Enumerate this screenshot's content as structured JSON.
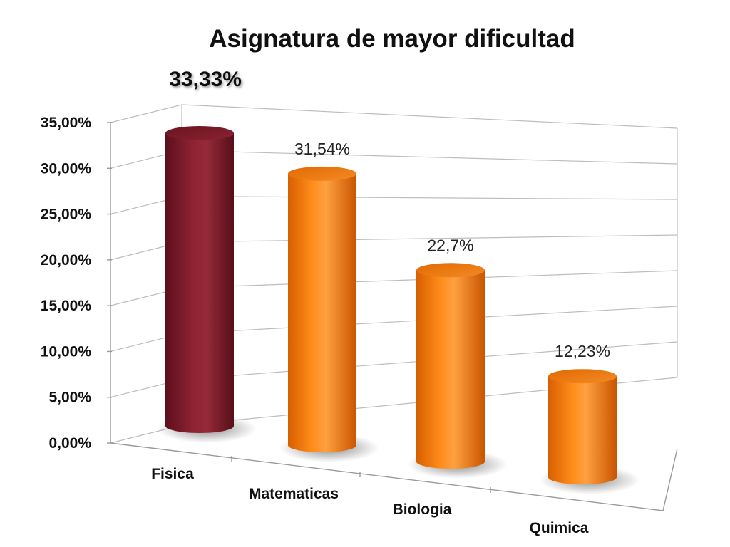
{
  "chart_data": {
    "type": "bar",
    "title": "Asignatura de mayor dificultad",
    "categories": [
      "Fisica",
      "Matematicas",
      "Biologia",
      "Quimica"
    ],
    "values": [
      33.33,
      31.54,
      22.7,
      12.23
    ],
    "data_labels": [
      "33,33%",
      "31,54%",
      "22,7%",
      "12,23%"
    ],
    "highlight_index": 0,
    "ylim": [
      0,
      35
    ],
    "yticks": [
      "0,00%",
      "5,00%",
      "10,00%",
      "15,00%",
      "20,00%",
      "25,00%",
      "30,00%",
      "35,00%"
    ],
    "grid": true,
    "colors": {
      "highlight": "#7e1c2c",
      "default": "#f07a10"
    }
  }
}
